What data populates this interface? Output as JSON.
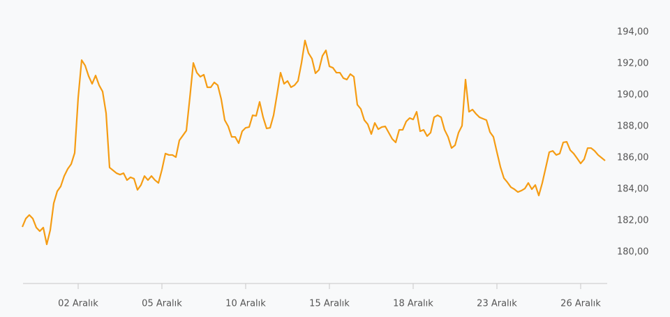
{
  "chart_data": {
    "type": "line",
    "color": "#f59c13",
    "categories": [
      null,
      null,
      null,
      null,
      null,
      null,
      null,
      null,
      null,
      null,
      null,
      null,
      null,
      null,
      null,
      null,
      "02 Aralık",
      null,
      null,
      null,
      null,
      null,
      null,
      null,
      null,
      null,
      null,
      null,
      null,
      null,
      null,
      null,
      null,
      null,
      null,
      null,
      null,
      null,
      null,
      null,
      "05 Aralık",
      null,
      null,
      null,
      null,
      null,
      null,
      null,
      null,
      null,
      null,
      null,
      null,
      null,
      null,
      null,
      null,
      null,
      null,
      null,
      null,
      null,
      null,
      null,
      "10 Aralık",
      null,
      null,
      null,
      null,
      null,
      null,
      null,
      null,
      null,
      null,
      null,
      null,
      null,
      null,
      null,
      null,
      null,
      null,
      null,
      null,
      null,
      null,
      null,
      "15 Aralık",
      null,
      null,
      null,
      null,
      null,
      null,
      null,
      null,
      null,
      null,
      null,
      null,
      null,
      null,
      null,
      null,
      null,
      null,
      null,
      null,
      null,
      null,
      null,
      "18 Aralık",
      null,
      null,
      null,
      null,
      null,
      null,
      null,
      null,
      null,
      null,
      null,
      null,
      null,
      null,
      null,
      null,
      null,
      null,
      null,
      null,
      null,
      null,
      null,
      "23 Aralık",
      null,
      null,
      null,
      null,
      null,
      null,
      null,
      null,
      null,
      null,
      null,
      null,
      null,
      null,
      null,
      null,
      null,
      null,
      null,
      null,
      null,
      null,
      null,
      "26 Aralık",
      null,
      null,
      null,
      null,
      null,
      null,
      null
    ],
    "values": [
      181.6,
      182.13,
      182.36,
      182.13,
      181.56,
      181.33,
      181.56,
      180.49,
      181.4,
      183.11,
      183.87,
      184.18,
      184.84,
      185.29,
      185.6,
      186.31,
      189.82,
      192.22,
      191.87,
      191.2,
      190.71,
      191.24,
      190.62,
      190.22,
      188.84,
      185.38,
      185.2,
      185.02,
      184.93,
      185.02,
      184.58,
      184.76,
      184.67,
      183.96,
      184.27,
      184.84,
      184.58,
      184.84,
      184.58,
      184.4,
      185.24,
      186.27,
      186.18,
      186.18,
      186.04,
      187.11,
      187.42,
      187.73,
      189.82,
      192.04,
      191.42,
      191.16,
      191.29,
      190.49,
      190.49,
      190.8,
      190.62,
      189.73,
      188.4,
      188.0,
      187.33,
      187.33,
      186.93,
      187.69,
      187.91,
      187.96,
      188.71,
      188.67,
      189.56,
      188.58,
      187.87,
      187.91,
      188.71,
      190.04,
      191.42,
      190.71,
      190.89,
      190.49,
      190.62,
      190.89,
      192.04,
      193.47,
      192.67,
      192.31,
      191.38,
      191.6,
      192.49,
      192.84,
      191.82,
      191.73,
      191.42,
      191.42,
      191.07,
      190.98,
      191.33,
      191.16,
      189.38,
      189.11,
      188.4,
      188.13,
      187.51,
      188.22,
      187.82,
      187.96,
      188.0,
      187.6,
      187.2,
      186.98,
      187.78,
      187.78,
      188.31,
      188.53,
      188.44,
      188.93,
      187.69,
      187.78,
      187.38,
      187.6,
      188.58,
      188.71,
      188.58,
      187.78,
      187.33,
      186.62,
      186.8,
      187.6,
      188.04,
      190.98,
      188.93,
      189.07,
      188.8,
      188.58,
      188.49,
      188.4,
      187.64,
      187.33,
      186.36,
      185.42,
      184.71,
      184.44,
      184.13,
      184.0,
      183.82,
      183.91,
      184.04,
      184.4,
      184.0,
      184.27,
      183.6,
      184.4,
      185.38,
      186.36,
      186.44,
      186.18,
      186.27,
      186.98,
      187.02,
      186.49,
      186.27,
      185.96,
      185.64,
      185.91,
      186.62,
      186.62,
      186.44,
      186.18,
      186.0,
      185.82
    ],
    "ylim": [
      178,
      196
    ],
    "yticks": [
      {
        "value": 180,
        "label": "180,00"
      },
      {
        "value": 182,
        "label": "182,00"
      },
      {
        "value": 184,
        "label": "184,00"
      },
      {
        "value": 186,
        "label": "186,00"
      },
      {
        "value": 188,
        "label": "188,00"
      },
      {
        "value": 190,
        "label": "190,00"
      },
      {
        "value": 192,
        "label": "192,00"
      },
      {
        "value": 194,
        "label": "194,00"
      }
    ]
  }
}
